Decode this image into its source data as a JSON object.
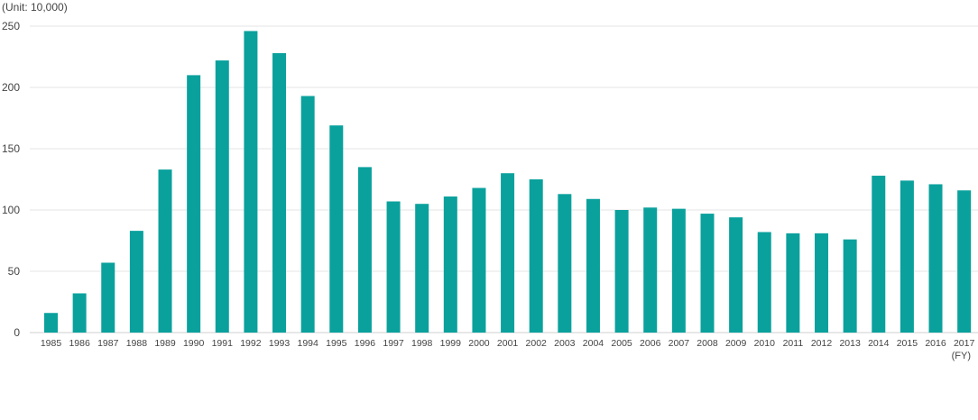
{
  "chart_data": {
    "type": "bar",
    "unit_label": "(Unit: 10,000)",
    "x_unit_label": "(FY)",
    "categories": [
      "1985",
      "1986",
      "1987",
      "1988",
      "1989",
      "1990",
      "1991",
      "1992",
      "1993",
      "1994",
      "1995",
      "1996",
      "1997",
      "1998",
      "1999",
      "2000",
      "2001",
      "2002",
      "2003",
      "2004",
      "2005",
      "2006",
      "2007",
      "2008",
      "2009",
      "2010",
      "2011",
      "2012",
      "2013",
      "2014",
      "2015",
      "2016",
      "2017"
    ],
    "values": [
      16,
      32,
      57,
      83,
      133,
      210,
      222,
      246,
      228,
      193,
      169,
      135,
      107,
      105,
      111,
      118,
      130,
      125,
      113,
      109,
      100,
      102,
      101,
      97,
      94,
      82,
      81,
      81,
      76,
      128,
      124,
      121,
      116
    ],
    "ylim": [
      0,
      250
    ],
    "yticks": [
      0,
      50,
      100,
      150,
      200,
      250
    ],
    "grid": true,
    "legend": "none",
    "bar_color": "#0aa19d"
  }
}
